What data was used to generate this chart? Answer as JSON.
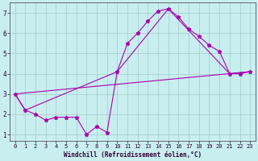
{
  "xlabel": "Windchill (Refroidissement éolien,°C)",
  "bg_color": "#c8eef0",
  "grid_color": "#a0ccc8",
  "line_color": "#aa00aa",
  "xlim": [
    -0.5,
    23.5
  ],
  "ylim": [
    0.7,
    7.5
  ],
  "xticks": [
    0,
    1,
    2,
    3,
    4,
    5,
    6,
    7,
    8,
    9,
    10,
    11,
    12,
    13,
    14,
    15,
    16,
    17,
    18,
    19,
    20,
    21,
    22,
    23
  ],
  "yticks": [
    1,
    2,
    3,
    4,
    5,
    6,
    7
  ],
  "line1_x": [
    0,
    1,
    2,
    3,
    4,
    5,
    6,
    7,
    8,
    9,
    10,
    11,
    12,
    13,
    14,
    15,
    16,
    17,
    18,
    19,
    20,
    21,
    22,
    23
  ],
  "line1_y": [
    3.0,
    2.2,
    2.0,
    1.7,
    1.85,
    1.85,
    1.85,
    1.0,
    1.4,
    1.1,
    4.1,
    5.5,
    6.0,
    6.6,
    7.1,
    7.2,
    6.8,
    6.2,
    5.85,
    5.4,
    5.1,
    4.0,
    4.0,
    4.1
  ],
  "line2_x": [
    0,
    1,
    10,
    15,
    21,
    23
  ],
  "line2_y": [
    3.0,
    2.2,
    4.1,
    7.2,
    4.0,
    4.1
  ],
  "line3_x": [
    0,
    23
  ],
  "line3_y": [
    3.0,
    4.1
  ],
  "marker": "*",
  "markersize": 3.5,
  "linewidth": 0.8,
  "tick_fontsize": 5.0,
  "xlabel_fontsize": 5.5
}
